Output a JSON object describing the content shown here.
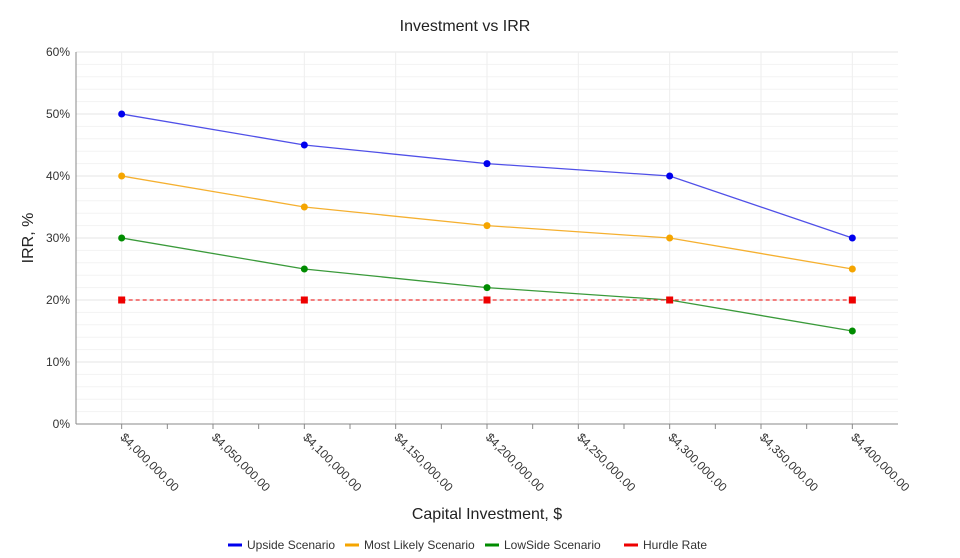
{
  "chart_data": {
    "type": "line",
    "title": "Investment vs IRR",
    "xlabel": "Capital Investment, $",
    "ylabel": "IRR, %",
    "x": [
      4000000,
      4100000,
      4200000,
      4300000,
      4400000
    ],
    "xlim": [
      3975000,
      4425000
    ],
    "ylim": [
      0,
      60
    ],
    "x_tick_labels": [
      "$4,000,000.00",
      "$4,050,000.00",
      "$4,100,000.00",
      "$4,150,000.00",
      "$4,200,000.00",
      "$4,250,000.00",
      "$4,300,000.00",
      "$4,350,000.00",
      "$4,400,000.00"
    ],
    "x_tick_values": [
      4000000,
      4050000,
      4100000,
      4150000,
      4200000,
      4250000,
      4300000,
      4350000,
      4400000
    ],
    "y_tick_labels": [
      "0%",
      "10%",
      "20%",
      "30%",
      "40%",
      "50%",
      "60%"
    ],
    "y_tick_values": [
      0,
      10,
      20,
      30,
      40,
      50,
      60
    ],
    "grid": true,
    "legend_position": "bottom",
    "series": [
      {
        "name": "Upside Scenario",
        "color": "#0000ee",
        "line": "#5050e8",
        "marker": "circle",
        "dashed": false,
        "values": [
          50,
          45,
          42,
          40,
          30
        ]
      },
      {
        "name": "Most Likely Scenario",
        "color": "#f5a500",
        "line": "#f5b030",
        "marker": "circle",
        "dashed": false,
        "values": [
          40,
          35,
          32,
          30,
          25
        ]
      },
      {
        "name": "LowSide Scenario",
        "color": "#008c00",
        "line": "#3a9a3a",
        "marker": "circle",
        "dashed": false,
        "values": [
          30,
          25,
          22,
          20,
          15
        ]
      },
      {
        "name": "Hurdle Rate",
        "color": "#ee0000",
        "line": "#ee3030",
        "marker": "square",
        "dashed": true,
        "values": [
          20,
          20,
          20,
          20,
          20
        ]
      }
    ]
  }
}
